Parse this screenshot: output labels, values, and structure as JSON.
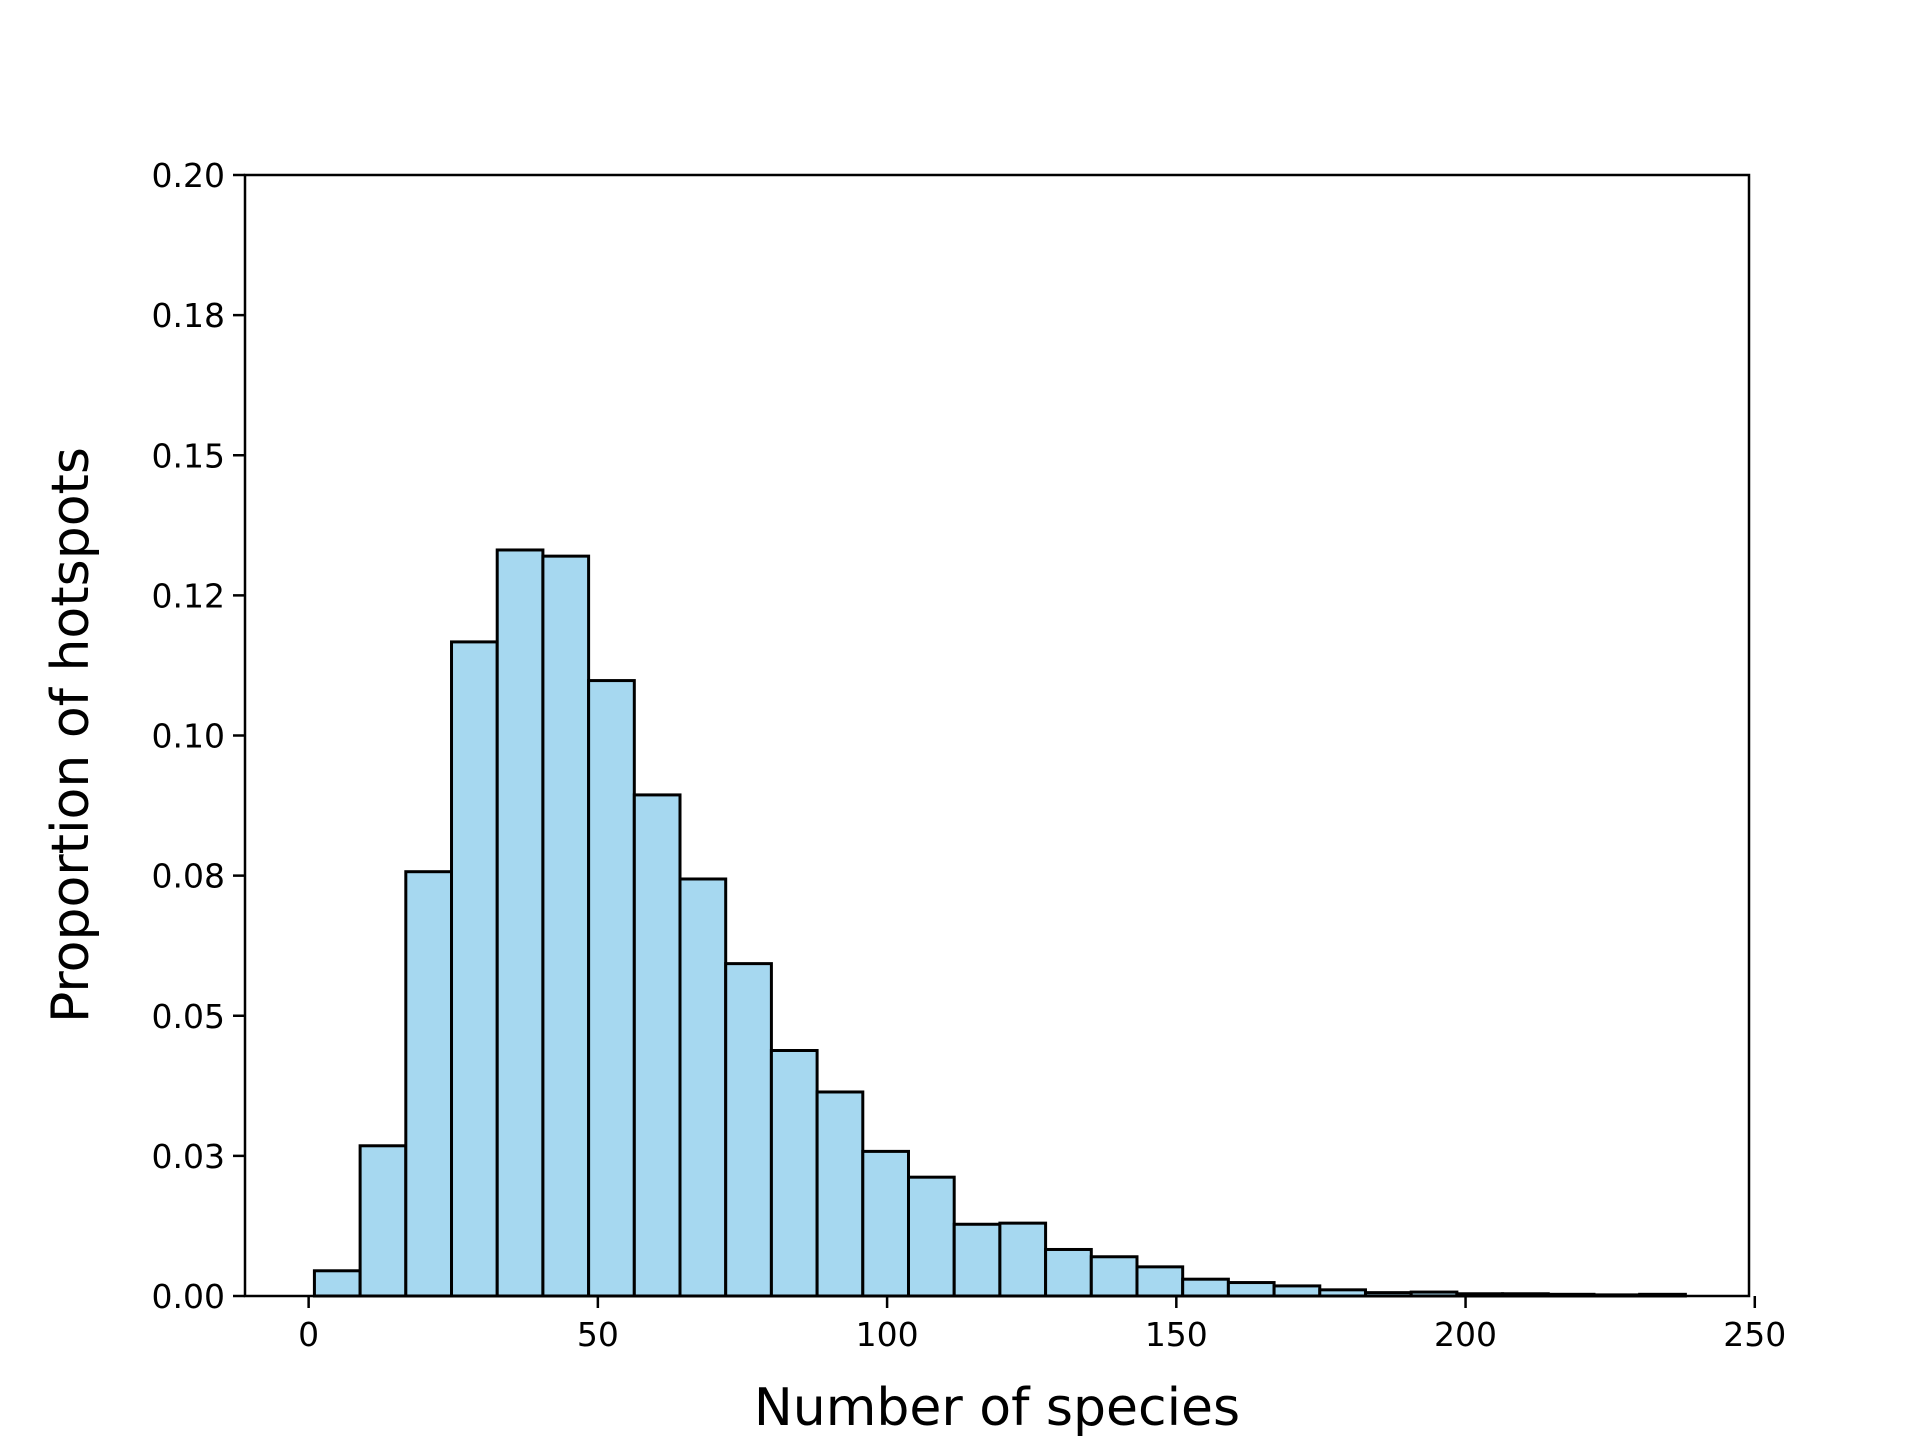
{
  "chart_data": {
    "type": "bar",
    "title": "",
    "xlabel": "Number of species",
    "ylabel": "Proportion of hotspots",
    "xlim": [
      -11,
      249
    ],
    "ylim": [
      0,
      0.2
    ],
    "xticks": [
      0,
      50,
      100,
      150,
      200,
      250
    ],
    "xtick_labels": [
      "0",
      "50",
      "100",
      "150",
      "200",
      "250"
    ],
    "yticks": [
      0,
      0.025,
      0.05,
      0.075,
      0.1,
      0.125,
      0.15,
      0.175,
      0.2
    ],
    "ytick_labels": [
      "0.00",
      "0.03",
      "0.05",
      "0.08",
      "0.10",
      "0.12",
      "0.15",
      "0.18",
      "0.20"
    ],
    "grid": false,
    "colors": {
      "bar_fill": "#a6d8f0",
      "bar_edge": "#000000"
    },
    "bin_edges": [
      1,
      8.9,
      16.8,
      24.7,
      32.6,
      40.5,
      48.4,
      56.3,
      64.2,
      72.1,
      80,
      87.9,
      95.8,
      103.7,
      111.6,
      119.5,
      127.4,
      135.3,
      143.2,
      151.1,
      159,
      166.9,
      174.8,
      182.7,
      190.6,
      198.5,
      206.4,
      214.3,
      222.2,
      230.1,
      238
    ],
    "values": [
      0.0045,
      0.0268,
      0.0757,
      0.1167,
      0.1331,
      0.132,
      0.1098,
      0.0894,
      0.0744,
      0.0593,
      0.0438,
      0.0364,
      0.0258,
      0.0212,
      0.0128,
      0.013,
      0.0083,
      0.007,
      0.0052,
      0.003,
      0.0024,
      0.0018,
      0.0011,
      0.0006,
      0.0007,
      0.0004,
      0.0004,
      0.0003,
      0.0002,
      0.0003
    ]
  }
}
